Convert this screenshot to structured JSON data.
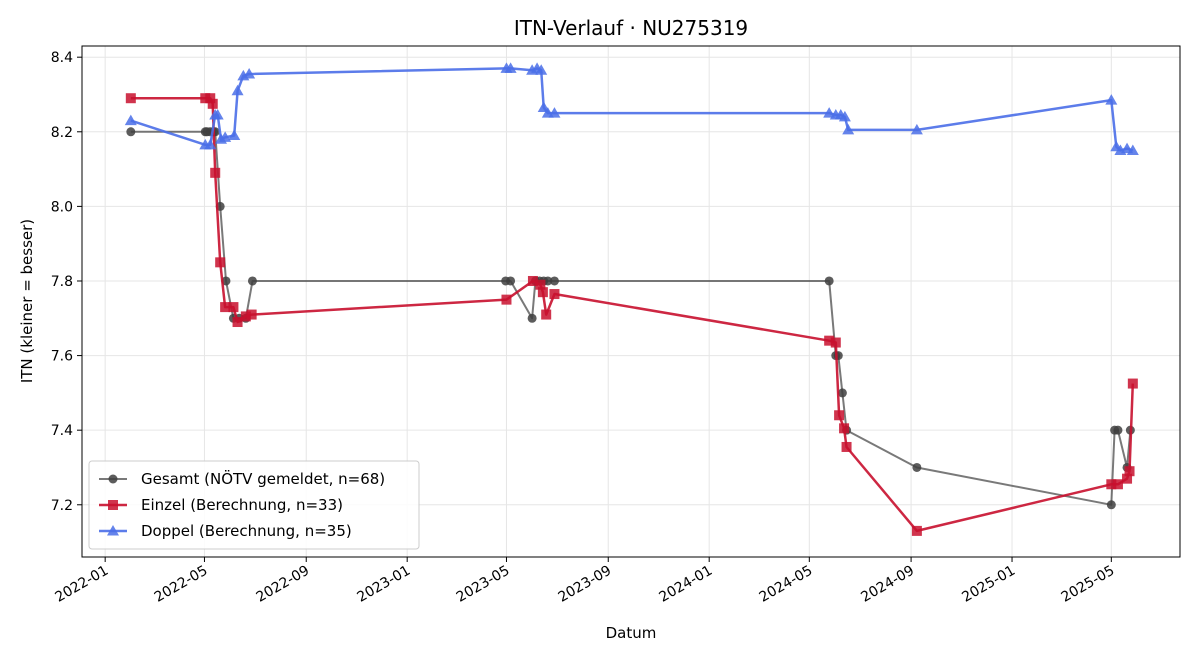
{
  "chart_data": {
    "type": "line",
    "title": "ITN-Verlauf · NU275319",
    "xlabel": "Datum",
    "ylabel": "ITN  (kleiner = besser)",
    "x_ticks": [
      "2022-01",
      "2022-05",
      "2022-09",
      "2023-01",
      "2023-05",
      "2023-09",
      "2024-01",
      "2024-05",
      "2024-09",
      "2025-01",
      "2025-05"
    ],
    "y_ticks": [
      7.2,
      7.4,
      7.6,
      7.8,
      8.0,
      8.2,
      8.4
    ],
    "xlim": [
      "2021-12-04",
      "2025-07-23"
    ],
    "ylim": [
      7.06,
      8.43
    ],
    "grid": true,
    "legend_position": "lower-left",
    "series": [
      {
        "name": "Gesamt (NÖTV gemeldet, n=68)",
        "color": "#404040",
        "marker": "circle",
        "points": [
          [
            "2022-02-01",
            8.2
          ],
          [
            "2022-05-02",
            8.2
          ],
          [
            "2022-05-04",
            8.2
          ],
          [
            "2022-05-08",
            8.2
          ],
          [
            "2022-05-12",
            8.2
          ],
          [
            "2022-05-14",
            8.2
          ],
          [
            "2022-05-20",
            8.0
          ],
          [
            "2022-05-27",
            7.8
          ],
          [
            "2022-06-05",
            7.7
          ],
          [
            "2022-06-12",
            7.7
          ],
          [
            "2022-06-20",
            7.7
          ],
          [
            "2022-06-28",
            7.8
          ],
          [
            "2023-04-30",
            7.8
          ],
          [
            "2023-05-06",
            7.8
          ],
          [
            "2023-06-01",
            7.7
          ],
          [
            "2023-06-05",
            7.8
          ],
          [
            "2023-06-10",
            7.8
          ],
          [
            "2023-06-15",
            7.8
          ],
          [
            "2023-06-20",
            7.8
          ],
          [
            "2023-06-28",
            7.8
          ],
          [
            "2024-05-25",
            7.8
          ],
          [
            "2024-06-02",
            7.6
          ],
          [
            "2024-06-05",
            7.6
          ],
          [
            "2024-06-10",
            7.5
          ],
          [
            "2024-06-15",
            7.4
          ],
          [
            "2024-09-08",
            7.3
          ],
          [
            "2025-05-01",
            7.2
          ],
          [
            "2025-05-05",
            7.4
          ],
          [
            "2025-05-09",
            7.4
          ],
          [
            "2025-05-20",
            7.3
          ],
          [
            "2025-05-24",
            7.4
          ]
        ]
      },
      {
        "name": "Einzel (Berechnung, n=33)",
        "color": "#c8102e",
        "marker": "square",
        "points": [
          [
            "2022-02-01",
            8.29
          ],
          [
            "2022-05-02",
            8.29
          ],
          [
            "2022-05-08",
            8.29
          ],
          [
            "2022-05-11",
            8.275
          ],
          [
            "2022-05-14",
            8.09
          ],
          [
            "2022-05-20",
            7.85
          ],
          [
            "2022-05-26",
            7.73
          ],
          [
            "2022-06-05",
            7.73
          ],
          [
            "2022-06-10",
            7.69
          ],
          [
            "2022-06-20",
            7.705
          ],
          [
            "2022-06-27",
            7.71
          ],
          [
            "2023-05-01",
            7.75
          ],
          [
            "2023-06-02",
            7.8
          ],
          [
            "2023-06-11",
            7.79
          ],
          [
            "2023-06-14",
            7.77
          ],
          [
            "2023-06-18",
            7.71
          ],
          [
            "2023-06-28",
            7.765
          ],
          [
            "2024-05-25",
            7.64
          ],
          [
            "2024-06-02",
            7.635
          ],
          [
            "2024-06-06",
            7.44
          ],
          [
            "2024-06-12",
            7.405
          ],
          [
            "2024-06-15",
            7.355
          ],
          [
            "2024-09-08",
            7.13
          ],
          [
            "2025-05-01",
            7.255
          ],
          [
            "2025-05-09",
            7.255
          ],
          [
            "2025-05-20",
            7.27
          ],
          [
            "2025-05-23",
            7.29
          ],
          [
            "2025-05-27",
            7.525
          ]
        ]
      },
      {
        "name": "Doppel (Berechnung, n=35)",
        "color": "#4a6ee8",
        "marker": "triangle",
        "points": [
          [
            "2022-02-01",
            8.23
          ],
          [
            "2022-05-02",
            8.165
          ],
          [
            "2022-05-08",
            8.165
          ],
          [
            "2022-05-14",
            8.245
          ],
          [
            "2022-05-17",
            8.245
          ],
          [
            "2022-05-21",
            8.18
          ],
          [
            "2022-05-26",
            8.185
          ],
          [
            "2022-06-06",
            8.19
          ],
          [
            "2022-06-10",
            8.31
          ],
          [
            "2022-06-17",
            8.35
          ],
          [
            "2022-06-24",
            8.355
          ],
          [
            "2023-05-01",
            8.37
          ],
          [
            "2023-05-06",
            8.37
          ],
          [
            "2023-06-01",
            8.365
          ],
          [
            "2023-06-07",
            8.37
          ],
          [
            "2023-06-12",
            8.365
          ],
          [
            "2023-06-15",
            8.265
          ],
          [
            "2023-06-20",
            8.25
          ],
          [
            "2023-06-28",
            8.25
          ],
          [
            "2024-05-25",
            8.25
          ],
          [
            "2024-06-02",
            8.245
          ],
          [
            "2024-06-08",
            8.245
          ],
          [
            "2024-06-13",
            8.24
          ],
          [
            "2024-06-17",
            8.205
          ],
          [
            "2024-09-08",
            8.205
          ],
          [
            "2025-05-01",
            8.285
          ],
          [
            "2025-05-07",
            8.16
          ],
          [
            "2025-05-12",
            8.15
          ],
          [
            "2025-05-20",
            8.155
          ],
          [
            "2025-05-27",
            8.15
          ]
        ]
      }
    ]
  }
}
